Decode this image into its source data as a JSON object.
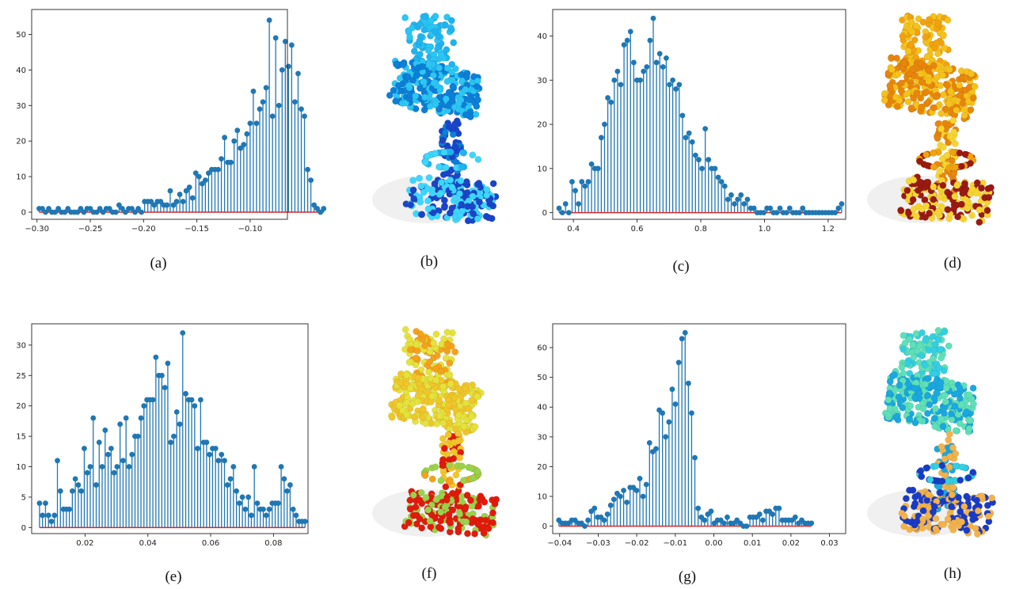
{
  "captions": {
    "a": "(a)",
    "b": "(b)",
    "c": "(c)",
    "d": "(d)",
    "e": "(e)",
    "f": "(f)",
    "g": "(g)",
    "h": "(h)"
  },
  "chairs": [
    {
      "id": "b",
      "palette": [
        "#1fb3f0",
        "#2bc6f5",
        "#0c7fd8",
        "#1a45c9",
        "#3dd6ff"
      ]
    },
    {
      "id": "d",
      "palette": [
        "#f2a20f",
        "#f5c21c",
        "#e8860c",
        "#f7d531",
        "#9a1a12"
      ]
    },
    {
      "id": "f",
      "palette": [
        "#f5a21a",
        "#e5e23c",
        "#f0c62a",
        "#e21a0b",
        "#9ad24a"
      ]
    },
    {
      "id": "h",
      "palette": [
        "#33cfe3",
        "#5fe0b8",
        "#1aa8e0",
        "#f3b24a",
        "#1a3bc6"
      ]
    }
  ],
  "chart_data": [
    {
      "id": "a",
      "type": "stem",
      "xlim": [
        -0.305,
        -0.065
      ],
      "ylim": [
        -2,
        57
      ],
      "xticks": [
        -0.3,
        -0.25,
        -0.2,
        -0.15,
        -0.1
      ],
      "xtick_labels": [
        "−0.30",
        "−0.25",
        "−0.20",
        "−0.15",
        "−0.10"
      ],
      "yticks": [
        0,
        10,
        20,
        30,
        40,
        50
      ],
      "x_start": -0.298,
      "x_step": 0.003,
      "values": [
        1,
        1,
        0,
        1,
        0,
        0,
        1,
        0,
        0,
        1,
        0,
        0,
        0,
        1,
        0,
        1,
        1,
        0,
        0,
        1,
        0,
        1,
        1,
        0,
        0,
        2,
        1,
        0,
        1,
        1,
        0,
        1,
        0,
        3,
        3,
        3,
        2,
        3,
        3,
        2,
        2,
        6,
        2,
        3,
        5,
        3,
        6,
        7,
        4,
        11,
        10,
        8,
        9,
        11,
        12,
        12,
        12,
        15,
        21,
        14,
        14,
        20,
        23,
        18,
        19,
        22,
        25,
        34,
        25,
        29,
        31,
        35,
        54,
        27,
        49,
        30,
        40,
        48,
        41,
        47,
        31,
        39,
        29,
        27,
        12,
        9,
        2,
        1,
        0,
        1
      ]
    },
    {
      "id": "c",
      "type": "stem",
      "xlim": [
        0.335,
        1.255
      ],
      "ylim": [
        -1.5,
        46
      ],
      "xticks": [
        0.4,
        0.6,
        0.8,
        1.0,
        1.2
      ],
      "xtick_labels": [
        "0.4",
        "0.6",
        "0.8",
        "1.0",
        "1.2"
      ],
      "yticks": [
        0,
        10,
        20,
        30,
        40
      ],
      "x_start": 0.355,
      "x_step": 0.0102,
      "values": [
        1,
        0,
        2,
        0,
        7,
        5,
        2,
        7,
        6,
        7,
        11,
        10,
        10,
        17,
        20,
        26,
        25,
        30,
        32,
        29,
        38,
        39,
        41,
        34,
        30,
        30,
        32,
        33,
        39,
        44,
        34,
        36,
        33,
        35,
        29,
        30,
        28,
        29,
        22,
        17,
        18,
        16,
        13,
        12,
        10,
        19,
        12,
        10,
        10,
        8,
        7,
        6,
        3,
        4,
        2,
        3,
        4,
        2,
        3,
        1,
        1,
        0,
        0,
        0,
        1,
        1,
        0,
        0,
        1,
        0,
        0,
        1,
        0,
        0,
        0,
        1,
        0,
        0,
        0,
        0,
        0,
        0,
        0,
        0,
        0,
        0,
        1,
        2
      ]
    },
    {
      "id": "e",
      "type": "stem",
      "xlim": [
        0.003,
        0.091
      ],
      "ylim": [
        -1,
        33.5
      ],
      "xticks": [
        0.02,
        0.04,
        0.06,
        0.08
      ],
      "xtick_labels": [
        "0.02",
        "0.04",
        "0.06",
        "0.08"
      ],
      "yticks": [
        0,
        5,
        10,
        15,
        20,
        25,
        30
      ],
      "x_start": 0.0055,
      "x_step": 0.00095,
      "values": [
        4,
        2,
        4,
        2,
        1,
        2,
        11,
        6,
        3,
        3,
        3,
        6,
        8,
        7,
        6,
        13,
        9,
        10,
        18,
        7,
        14,
        10,
        16,
        12,
        13,
        9,
        10,
        17,
        11,
        18,
        10,
        12,
        15,
        15,
        18,
        20,
        21,
        21,
        21,
        28,
        25,
        25,
        23,
        27,
        14,
        15,
        19,
        17,
        32,
        22,
        21,
        21,
        20,
        13,
        21,
        14,
        14,
        12,
        13,
        13,
        11,
        12,
        11,
        7,
        8,
        10,
        6,
        4,
        5,
        3,
        5,
        2,
        10,
        4,
        3,
        3,
        2,
        3,
        4,
        4,
        4,
        10,
        8,
        6,
        7,
        3,
        2,
        1,
        1,
        1
      ]
    },
    {
      "id": "g",
      "type": "stem",
      "xlim": [
        -0.0418,
        0.0342
      ],
      "ylim": [
        -2.5,
        68
      ],
      "xticks": [
        -0.04,
        -0.03,
        -0.02,
        -0.01,
        0.0,
        0.01,
        0.02,
        0.03
      ],
      "xtick_labels": [
        "−0.04",
        "−0.03",
        "−0.02",
        "−0.01",
        "0.00",
        "0.01",
        "0.02",
        "0.03"
      ],
      "yticks": [
        0,
        10,
        20,
        30,
        40,
        50,
        60
      ],
      "x_start": -0.0402,
      "x_step": 0.00084,
      "values": [
        2,
        1,
        1,
        1,
        2,
        2,
        1,
        1,
        0,
        2,
        5,
        6,
        3,
        3,
        2,
        4,
        7,
        9,
        11,
        10,
        12,
        8,
        13,
        13,
        12,
        16,
        10,
        14,
        28,
        25,
        26,
        39,
        38,
        30,
        35,
        46,
        41,
        55,
        63,
        65,
        48,
        38,
        23,
        6,
        3,
        2,
        4,
        5,
        1,
        2,
        2,
        1,
        3,
        1,
        1,
        2,
        1,
        0,
        0,
        3,
        3,
        3,
        4,
        2,
        5,
        5,
        4,
        6,
        6,
        2,
        2,
        2,
        2,
        3,
        1,
        2,
        1,
        1,
        1
      ]
    }
  ]
}
